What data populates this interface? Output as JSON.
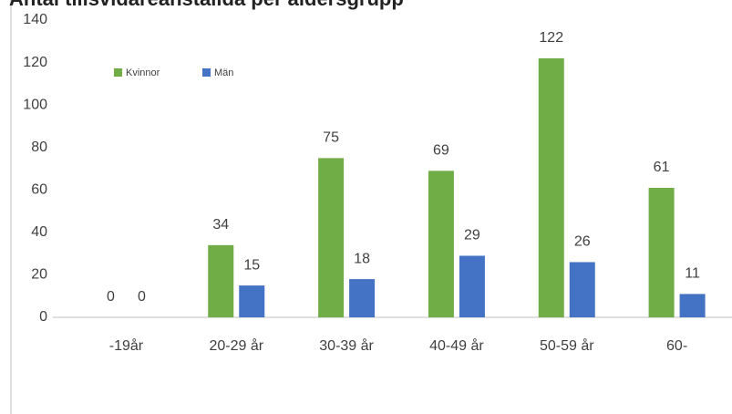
{
  "chart_data": {
    "type": "bar",
    "title": "Antal tillsvidareanställda per åldersgrupp",
    "categories": [
      "-19år",
      "20-29 år",
      "30-39 år",
      "40-49 år",
      "50-59 år",
      "60-"
    ],
    "series": [
      {
        "name": "Kvinnor",
        "color": "#70ad47",
        "values": [
          0,
          34,
          75,
          69,
          122,
          61
        ]
      },
      {
        "name": "Män",
        "color": "#4472c4",
        "values": [
          0,
          15,
          18,
          29,
          26,
          11
        ]
      }
    ],
    "ylim": [
      0,
      140
    ],
    "yticks": [
      0,
      20,
      40,
      60,
      80,
      100,
      120,
      140
    ],
    "grid": false,
    "legend": "top-left"
  }
}
